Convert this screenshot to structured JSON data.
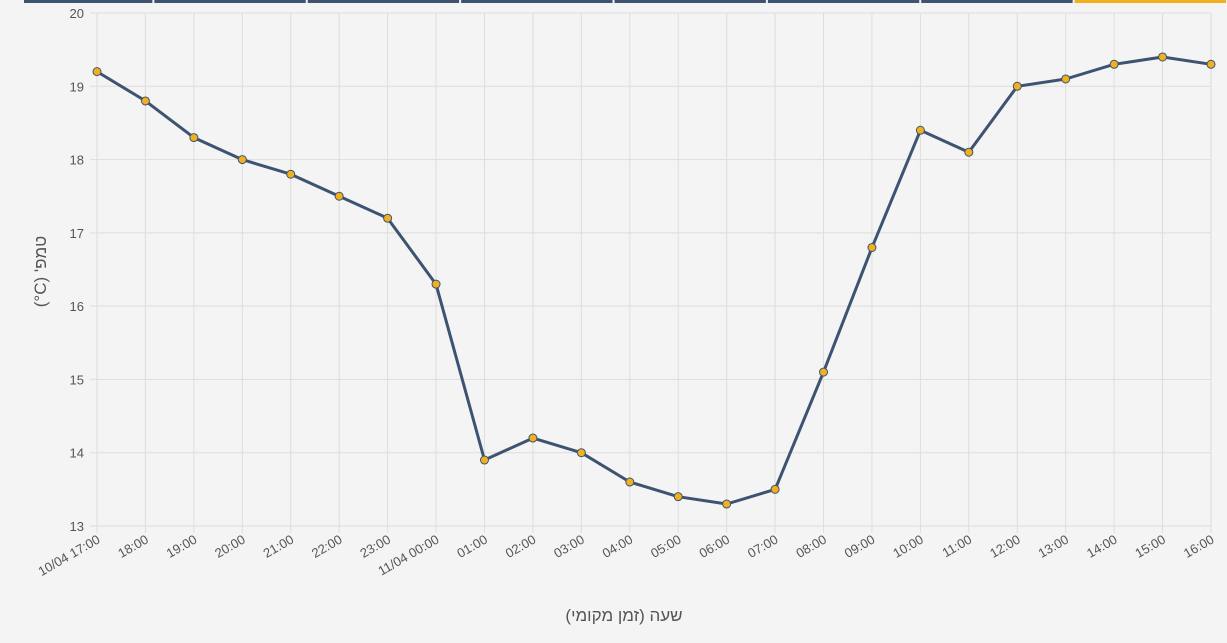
{
  "chart_data": {
    "type": "line",
    "xlabel": "שעה (זמן מקומי)",
    "ylabel": "טמפ' (C°)",
    "ylim": [
      13,
      20
    ],
    "yticks": [
      13,
      14,
      15,
      16,
      17,
      18,
      19,
      20
    ],
    "grid": true,
    "categories": [
      "10/04 17:00",
      "18:00",
      "19:00",
      "20:00",
      "21:00",
      "22:00",
      "23:00",
      "11/04 00:00",
      "01:00",
      "02:00",
      "03:00",
      "04:00",
      "05:00",
      "06:00",
      "07:00",
      "08:00",
      "09:00",
      "10:00",
      "11:00",
      "12:00",
      "13:00",
      "14:00",
      "15:00",
      "16:00"
    ],
    "series": [
      {
        "values": [
          19.2,
          18.8,
          18.3,
          18.0,
          17.8,
          17.5,
          17.2,
          16.3,
          13.9,
          14.2,
          14.0,
          13.6,
          13.4,
          13.3,
          13.5,
          15.1,
          16.8,
          18.4,
          18.1,
          19.0,
          19.1,
          19.3,
          19.4,
          19.3
        ],
        "line_color": "#3d5372",
        "marker_color": "#f2b01e"
      }
    ]
  },
  "top_tabs": {
    "count": 8,
    "active_index": 7,
    "color": "#3d5372",
    "active_color": "#f2b01e"
  }
}
